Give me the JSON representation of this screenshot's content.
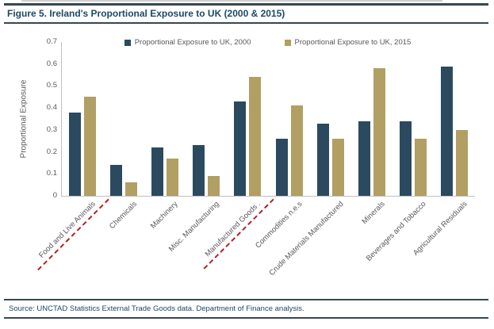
{
  "title": "Figure 5. Ireland's Proportional Exposure to UK (2000 & 2015)",
  "source": "Source: UNCTAD Statistics External Trade Goods data. Department of Finance analysis.",
  "colors": {
    "series_2000": "#2B4A5F",
    "series_2015": "#B19F63",
    "title_text": "#1C4966",
    "frame_line": "#374750",
    "axis_line": "#C0C0C0",
    "tick_text": "#595959",
    "red_underline": "#B42025"
  },
  "chart_data": {
    "type": "bar",
    "title": "",
    "xlabel": "",
    "ylabel": "Proportional Exposure",
    "ylim": [
      0,
      0.7
    ],
    "yticks": [
      "0",
      "0.1",
      "0.2",
      "0.3",
      "0.4",
      "0.5",
      "0.6",
      "0.7"
    ],
    "grid": false,
    "legend_position": "top-center",
    "categories": [
      "Food and Live Animals",
      "Chemicals",
      "Machinery",
      "Misc. Manufacturing",
      "Manufactured Goods .",
      "Commodities n.e.s",
      "Crude Materials Manufactured",
      "Minerals",
      "Beverages and Tobacco",
      "Agricultural Residuals"
    ],
    "series": [
      {
        "name": "Proportional Exposure to UK, 2000",
        "values": [
          0.38,
          0.14,
          0.22,
          0.23,
          0.43,
          0.26,
          0.33,
          0.34,
          0.34,
          0.59
        ]
      },
      {
        "name": "Proportional Exposure to UK, 2015",
        "values": [
          0.45,
          0.06,
          0.17,
          0.09,
          0.54,
          0.41,
          0.26,
          0.58,
          0.26,
          0.3
        ]
      }
    ],
    "red_underline_category_indices": [
      0,
      4
    ]
  }
}
